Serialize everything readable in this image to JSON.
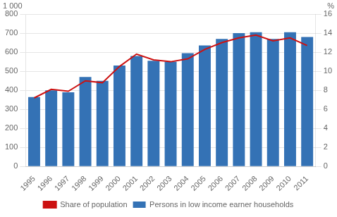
{
  "chart_data": {
    "type": "bar",
    "categories": [
      "1995",
      "1996",
      "1997",
      "1998",
      "1999",
      "2000",
      "2001",
      "2002",
      "2003",
      "2004",
      "2005",
      "2006",
      "2007",
      "2008",
      "2009",
      "2010",
      "2011"
    ],
    "series": [
      {
        "name": "Persons in low income earner households",
        "type": "bar",
        "color": "#3472b5",
        "values": [
          365,
          400,
          390,
          470,
          450,
          530,
          580,
          555,
          550,
          595,
          635,
          670,
          700,
          705,
          670,
          705,
          680
        ]
      },
      {
        "name": "Share of population",
        "type": "line",
        "axis": "y2",
        "color": "#cc1111",
        "values": [
          7.2,
          8.1,
          7.9,
          9.0,
          8.8,
          10.5,
          11.8,
          11.2,
          11.0,
          11.3,
          12.3,
          13.0,
          13.5,
          13.8,
          13.2,
          13.5,
          12.7
        ]
      }
    ],
    "ylabel": "1 000",
    "y2label": "%",
    "ylim": [
      0,
      800
    ],
    "yticks": [
      0,
      100,
      200,
      300,
      400,
      500,
      600,
      700,
      800
    ],
    "y2lim": [
      0,
      16
    ],
    "y2ticks": [
      0,
      2,
      4,
      6,
      8,
      10,
      12,
      14,
      16
    ],
    "grid": true,
    "legend": "bottom"
  }
}
